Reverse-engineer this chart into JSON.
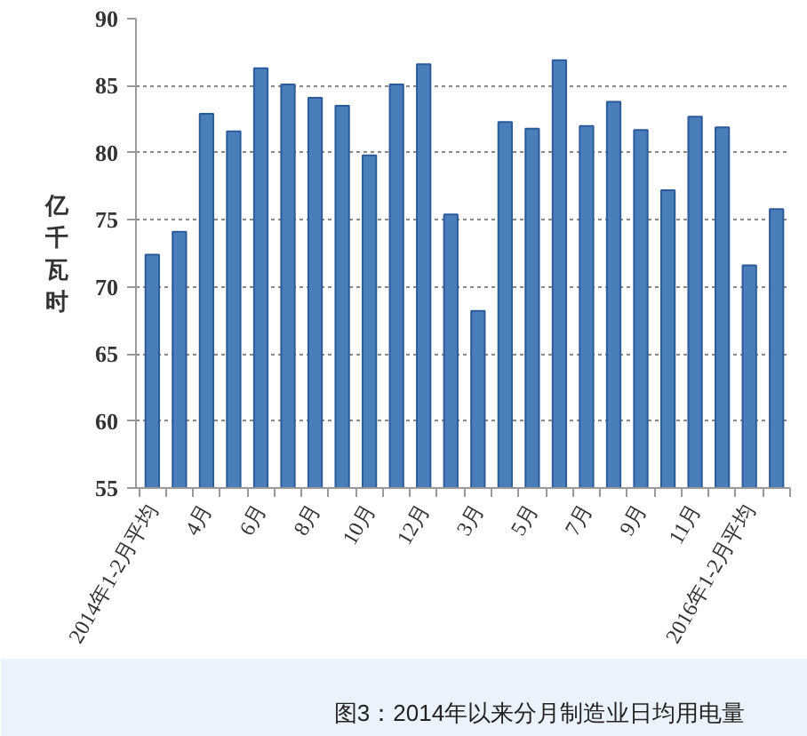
{
  "chart_data": {
    "type": "bar",
    "title": "图3：2014年以来分月制造业日均用电量",
    "ylabel": "亿千瓦时",
    "categories": [
      "2014年1-2月平均",
      null,
      "4月",
      null,
      "6月",
      null,
      "8月",
      null,
      "10月",
      null,
      "12月",
      null,
      "3月",
      null,
      "5月",
      null,
      "7月",
      null,
      "9月",
      null,
      "11月",
      null,
      "2016年1-2月平均",
      null
    ],
    "values": [
      72.4,
      74.1,
      82.9,
      81.6,
      86.3,
      85.1,
      84.1,
      83.5,
      79.8,
      85.1,
      86.6,
      75.4,
      68.2,
      82.3,
      81.8,
      86.9,
      82.0,
      83.8,
      81.7,
      77.2,
      82.7,
      81.9,
      71.6,
      75.8
    ],
    "color": "#4a7ebb",
    "ylim": [
      55,
      90
    ],
    "yticks": [
      55,
      60,
      65,
      70,
      75,
      80,
      85,
      90
    ],
    "grid": "y"
  }
}
